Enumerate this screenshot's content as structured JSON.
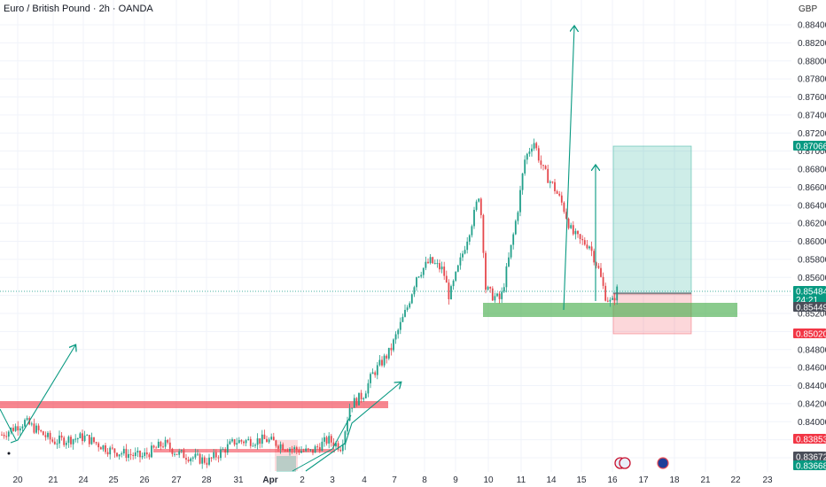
{
  "title": "Euro / British Pound · 2h · OANDA",
  "currency": "GBP",
  "colors": {
    "up": "#22a08a",
    "down": "#e5484d",
    "grid": "#f0f3fa",
    "teal_zone": "rgba(34,171,148,0.22)",
    "red_zone": "rgba(242,54,69,0.22)",
    "green_band": "rgba(76,175,80,0.65)",
    "red_band": "rgba(242,54,69,0.6)",
    "arrow": "#089981"
  },
  "chart_data": {
    "type": "candlestick",
    "y_scale": "price",
    "ylim": [
      0.8366,
      0.8852
    ],
    "y_ticks": [
      "0.88400",
      "0.88200",
      "0.88000",
      "0.87800",
      "0.87600",
      "0.87400",
      "0.87200",
      "0.87000",
      "0.86800",
      "0.86600",
      "0.86400",
      "0.86200",
      "0.86000",
      "0.85800",
      "0.85600",
      "0.85400",
      "0.85200",
      "0.85000",
      "0.84800",
      "0.84600",
      "0.84400",
      "0.84200",
      "0.84000",
      "0.83800",
      "0.83600"
    ],
    "x_ticks": [
      "20",
      "21",
      "24",
      "25",
      "26",
      "27",
      "28",
      "31",
      "Apr",
      "2",
      "3",
      "4",
      "7",
      "8",
      "9",
      "10",
      "11",
      "14",
      "15",
      "16",
      "17",
      "18",
      "21",
      "22",
      "23"
    ],
    "price_tags": [
      {
        "label": "0.87066",
        "color": "#089981"
      },
      {
        "label": "0.85484",
        "sublabel": "24:21",
        "color": "#089981"
      },
      {
        "label": "0.85449",
        "color": "#4a4e59"
      },
      {
        "label": "0.85020",
        "color": "#f23645"
      },
      {
        "label": "0.83853",
        "color": "#f23645"
      },
      {
        "label": "0.83672",
        "color": "#4a4e59"
      },
      {
        "label": "0.83668",
        "color": "#089981"
      }
    ],
    "current_price": 0.85484,
    "price_path": [
      [
        0.8,
        0.8385
      ],
      [
        28,
        0.84
      ],
      [
        60,
        0.8378
      ],
      [
        95,
        0.8383
      ],
      [
        125,
        0.8368
      ],
      [
        160,
        0.8361
      ],
      [
        185,
        0.8376
      ],
      [
        200,
        0.8365
      ],
      [
        235,
        0.8356
      ],
      [
        265,
        0.8378
      ],
      [
        300,
        0.838
      ],
      [
        330,
        0.837
      ],
      [
        350,
        0.8366
      ],
      [
        370,
        0.838
      ],
      [
        385,
        0.8372
      ],
      [
        395,
        0.8418
      ],
      [
        410,
        0.843
      ],
      [
        420,
        0.8452
      ],
      [
        440,
        0.8478
      ],
      [
        460,
        0.8528
      ],
      [
        470,
        0.8562
      ],
      [
        485,
        0.8578
      ],
      [
        500,
        0.8568
      ],
      [
        507,
        0.8538
      ],
      [
        520,
        0.858
      ],
      [
        535,
        0.863
      ],
      [
        541,
        0.8655
      ],
      [
        545,
        0.86
      ],
      [
        548,
        0.8548
      ],
      [
        555,
        0.854
      ],
      [
        565,
        0.8535
      ],
      [
        578,
        0.86
      ],
      [
        585,
        0.864
      ],
      [
        592,
        0.869
      ],
      [
        602,
        0.8712
      ],
      [
        612,
        0.868
      ],
      [
        625,
        0.866
      ],
      [
        635,
        0.864
      ],
      [
        645,
        0.861
      ],
      [
        655,
        0.86
      ],
      [
        665,
        0.8596
      ],
      [
        675,
        0.857
      ],
      [
        683,
        0.854
      ],
      [
        690,
        0.853
      ],
      [
        697,
        0.8548
      ]
    ],
    "resistance_levels": [
      "0.84250",
      "0.83765"
    ],
    "support_zone": [
      "0.85350",
      "0.85190"
    ],
    "trade_box": {
      "entry": "0.85484",
      "target": "0.87066",
      "stop": "0.85020"
    },
    "arrows": 6
  }
}
